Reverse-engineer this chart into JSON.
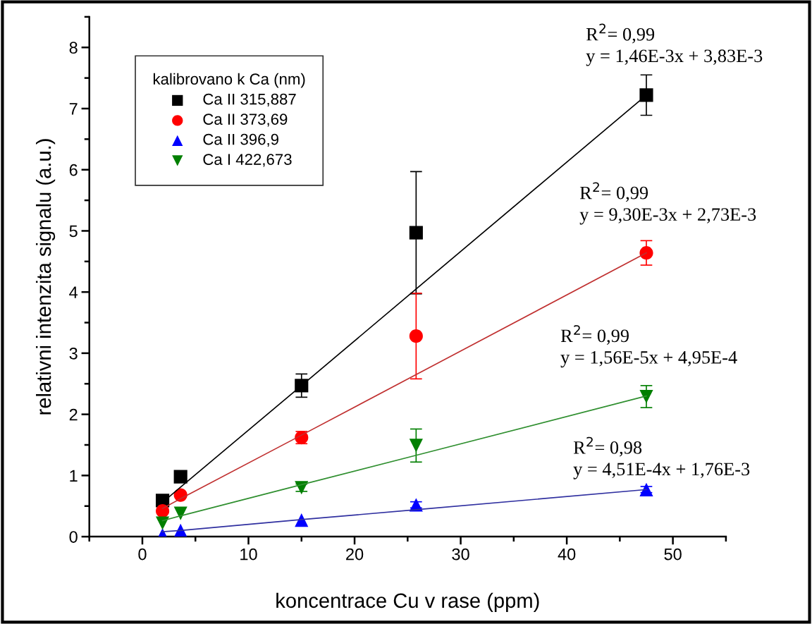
{
  "chart_data": {
    "type": "scatter",
    "xlabel": "koncentrace Cu v rase (ppm)",
    "ylabel": "relativni intenzita signalu (a.u.)",
    "legend_title": "kalibrovano k Ca (nm)",
    "legend": "top left",
    "x": [
      1.9,
      3.6,
      15,
      25.8,
      47.5
    ],
    "series": [
      {
        "name": "Ca II 315,887",
        "color": "#000000",
        "marker": "square",
        "values": [
          0.59,
          0.98,
          2.47,
          4.97,
          7.22
        ],
        "errors": [
          null,
          null,
          0.19,
          1.0,
          0.33
        ]
      },
      {
        "name": "Ca II 373,69",
        "color": "#ff0000",
        "marker": "circle",
        "values": [
          0.42,
          0.68,
          1.62,
          3.28,
          4.64
        ],
        "errors": [
          null,
          null,
          0.1,
          0.7,
          0.2
        ]
      },
      {
        "name": "Ca II 396,9",
        "color": "#0000ff",
        "marker": "triangle",
        "values": [
          0.03,
          0.1,
          0.27,
          0.52,
          0.77
        ],
        "errors": [
          null,
          null,
          null,
          0.05,
          0.05
        ]
      },
      {
        "name": "Ca I 422,673",
        "color": "#007f00",
        "marker": "triangle_down",
        "values": [
          0.22,
          0.38,
          0.8,
          1.49,
          2.29
        ],
        "errors": [
          null,
          null,
          0.06,
          0.27,
          0.18
        ]
      },
      {
        "type": "line",
        "color": "#000000",
        "values": [
          0.56,
          0.81,
          2.47,
          4.05,
          7.22
        ]
      },
      {
        "type": "line",
        "color": "#c03030",
        "values": [
          0.46,
          0.62,
          1.66,
          2.65,
          4.64
        ]
      },
      {
        "type": "line",
        "color": "#3030a0",
        "values": [
          0.08,
          0.1,
          0.28,
          0.44,
          0.77
        ]
      },
      {
        "type": "line",
        "color": "#2f8f2f",
        "values": [
          0.26,
          0.34,
          0.85,
          1.33,
          2.3
        ]
      }
    ],
    "annotations": [
      "R$^{2}$= 0,99\ny = 1,46E-3x + 3,83E-3",
      "R$^{2}$= 0,99\ny = 9,30E-3x + 2,73E-3",
      "R$^{2}$= 0,99\ny = 1,56E-5x + 4,95E-4",
      "R$^{2}$= 0,98\ny = 4,51E-4x + 1,76E-3"
    ],
    "xlim": [
      -5,
      55
    ],
    "xticks": [
      0,
      10,
      20,
      30,
      40,
      50
    ],
    "ylim": [
      0,
      8.5
    ],
    "yticks": [
      0,
      1,
      2,
      3,
      4,
      5,
      6,
      7,
      8
    ],
    "grid": false
  }
}
